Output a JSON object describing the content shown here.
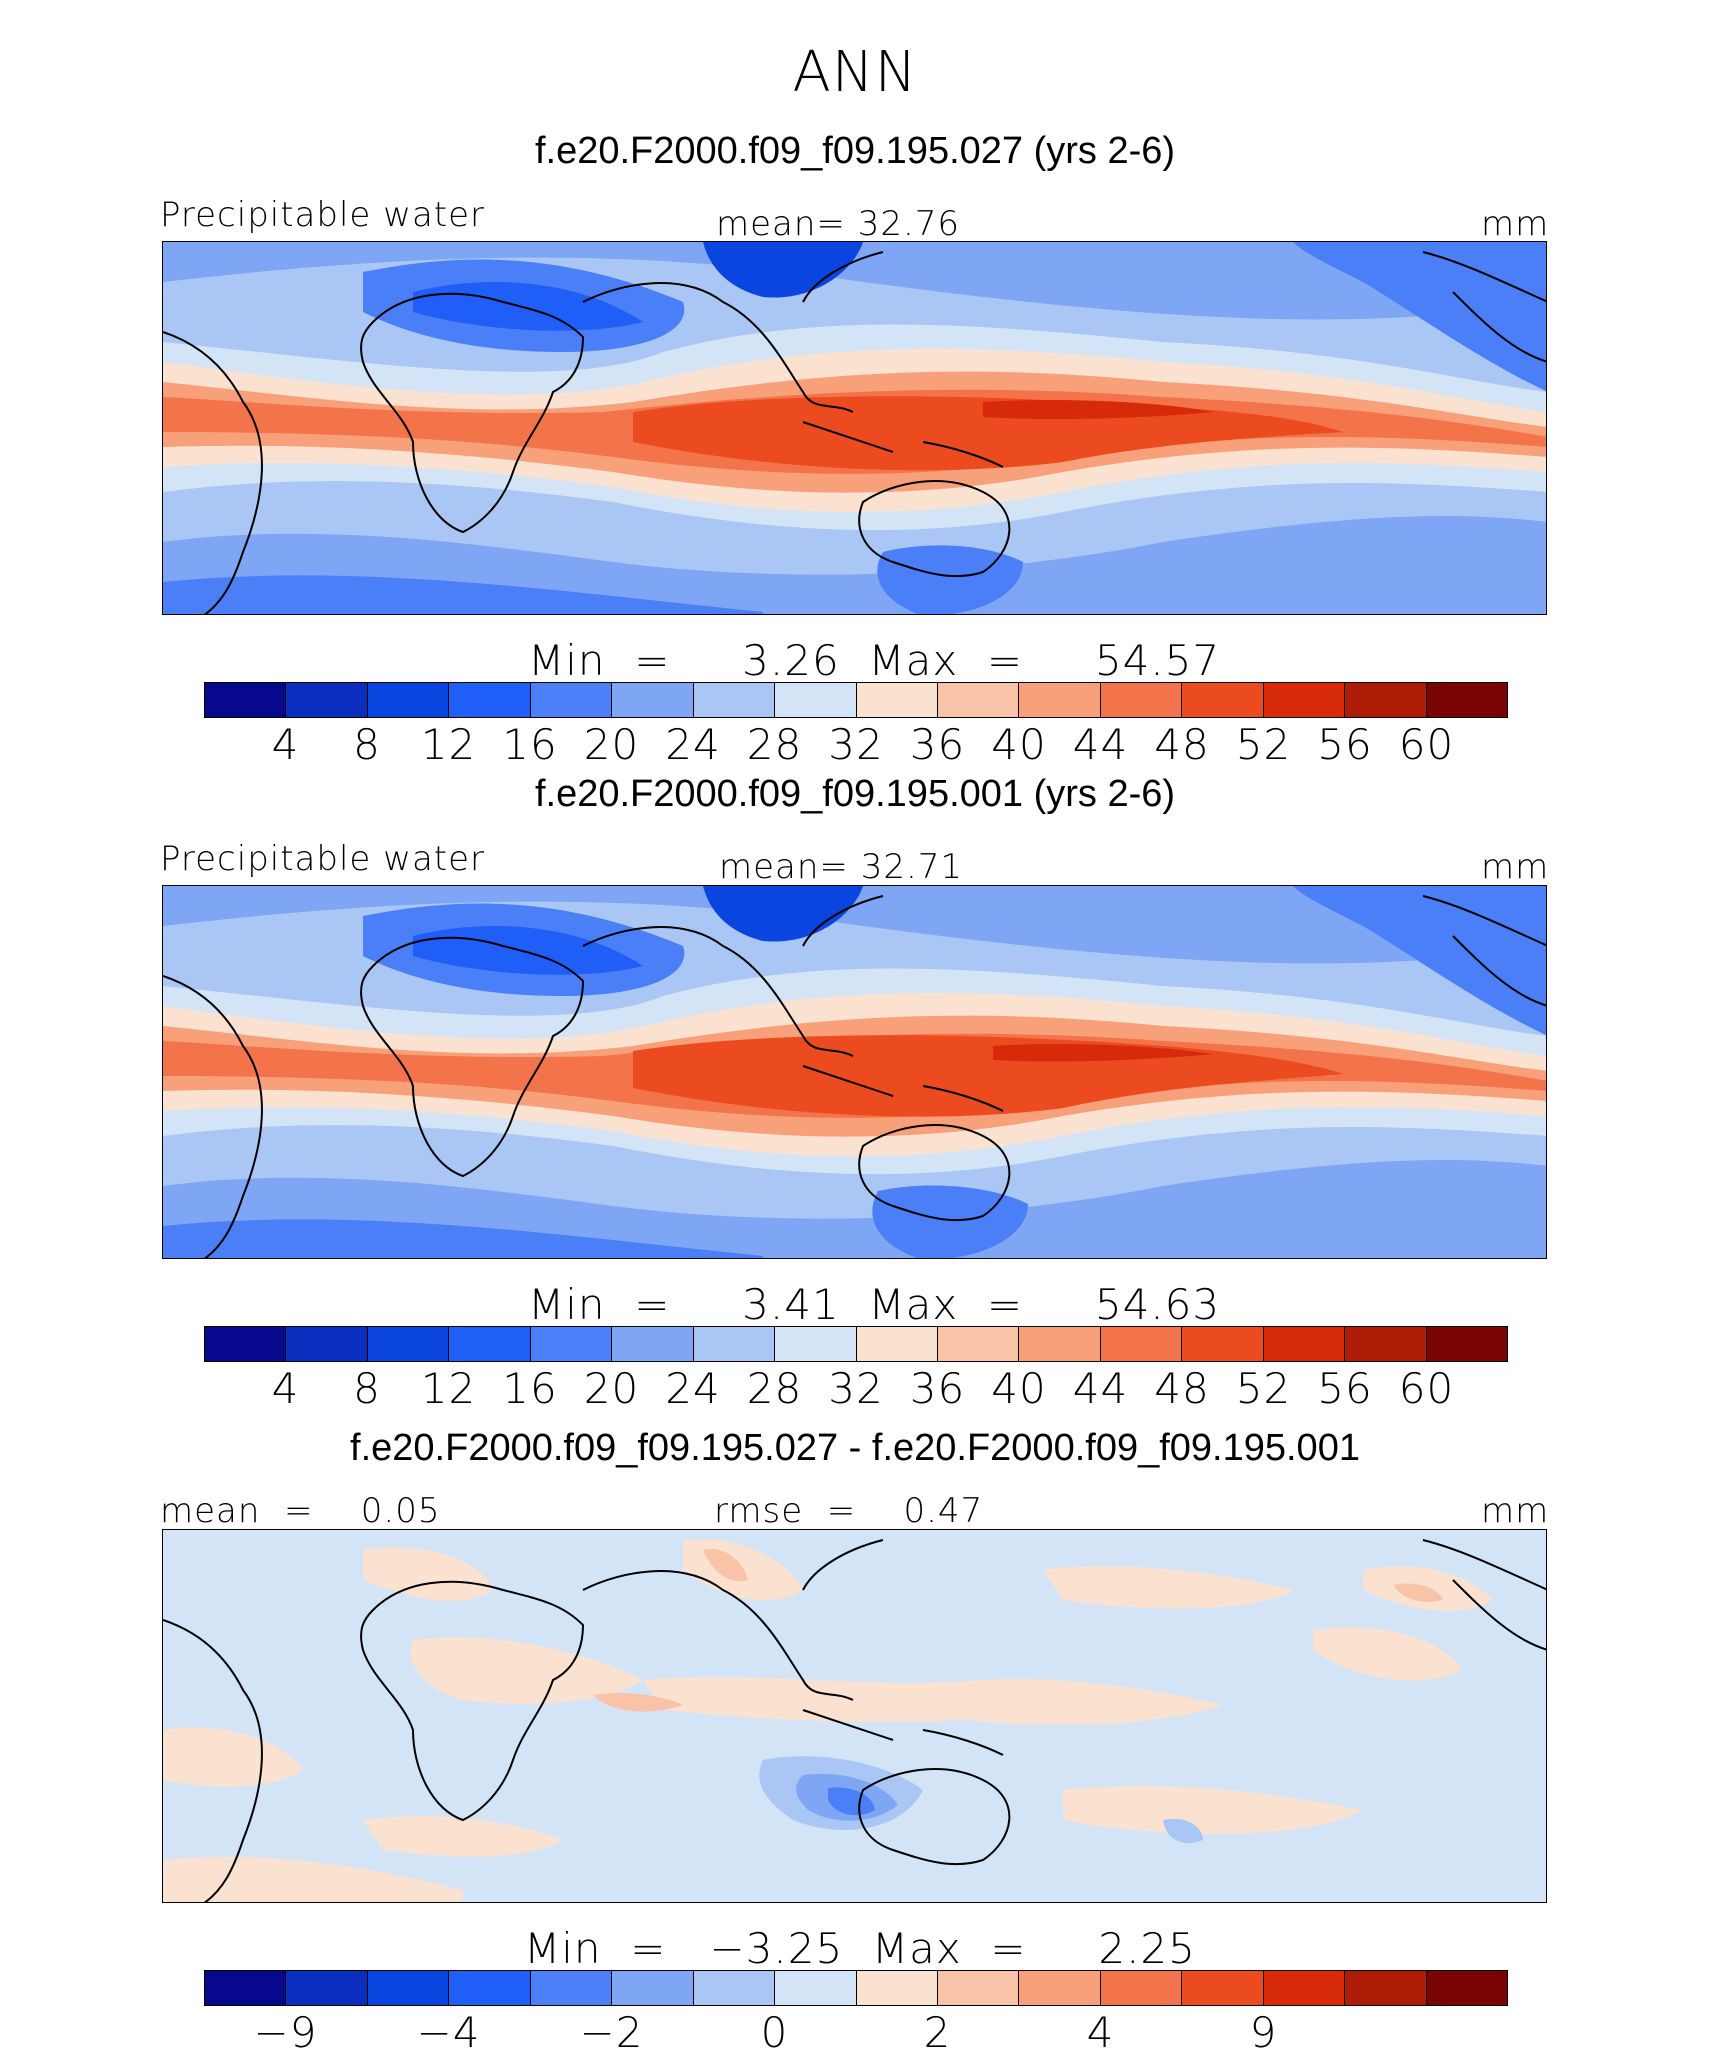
{
  "figure": {
    "title": "ANN"
  },
  "panels": [
    {
      "case_title": "f.e20.F2000.f09_f09.195.027 (yrs 2-6)",
      "left_label": "Precipitable water",
      "center_label": "mean=   32.76",
      "units": "mm",
      "minmax": "Min  =     3.26  Max  =     54.57",
      "tick_labels": [
        "4",
        "8",
        "12",
        "16",
        "20",
        "24",
        "28",
        "32",
        "36",
        "40",
        "44",
        "48",
        "52",
        "56",
        "60"
      ],
      "field": "absolute"
    },
    {
      "case_title": "f.e20.F2000.f09_f09.195.001 (yrs 2-6)",
      "left_label": "Precipitable water",
      "center_label": "mean=   32.71",
      "units": "mm",
      "minmax": "Min  =     3.41  Max  =     54.63",
      "tick_labels": [
        "4",
        "8",
        "12",
        "16",
        "20",
        "24",
        "28",
        "32",
        "36",
        "40",
        "44",
        "48",
        "52",
        "56",
        "60"
      ],
      "field": "absolute"
    },
    {
      "case_title": "f.e20.F2000.f09_f09.195.027 - f.e20.F2000.f09_f09.195.001",
      "left_label": "mean  =    0.05",
      "center_label": "rmse  =    0.47",
      "units": "mm",
      "minmax": "Min  =   −3.25  Max  =     2.25",
      "tick_labels": [
        "−9",
        "−4",
        "−2",
        "0",
        "2",
        "4",
        "9"
      ],
      "field": "difference"
    }
  ],
  "colormap": [
    "#08088e",
    "#0a2fbf",
    "#0b45e0",
    "#1f5ef7",
    "#4a7ff7",
    "#7ea6f5",
    "#aac6f4",
    "#d3e4f7",
    "#fbe2d0",
    "#f9c3a7",
    "#f7a07a",
    "#f3744a",
    "#ec4a1f",
    "#d62a0b",
    "#ae1b06",
    "#7a0403"
  ]
}
